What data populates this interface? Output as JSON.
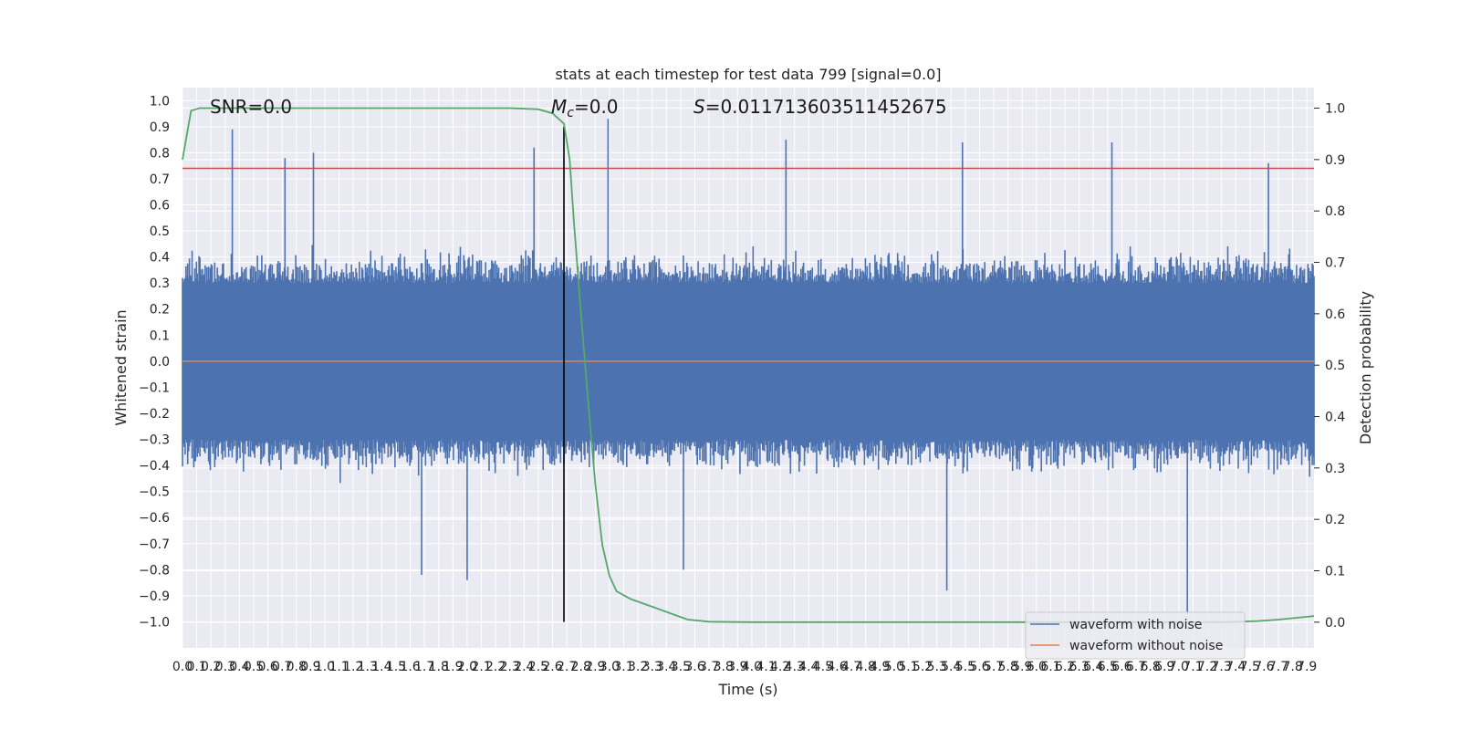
{
  "chart_data": {
    "type": "line",
    "title": "stats at each timestep for test data 799 [signal=0.0]",
    "xlabel": "Time (s)",
    "ylabel": "Whitened strain",
    "y2label": "Detection probability",
    "xlim": [
      0.0,
      7.95
    ],
    "ylim": [
      -1.1,
      1.05
    ],
    "y2lim": [
      -0.05,
      1.04
    ],
    "x_tick_step": 0.1,
    "x_tick_max": 7.9,
    "yticks": [
      "1.0",
      "0.9",
      "0.8",
      "0.7",
      "0.6",
      "0.5",
      "0.4",
      "0.3",
      "0.2",
      "0.1",
      "0.0",
      "-0.1",
      "-0.2",
      "-0.3",
      "-0.4",
      "-0.5",
      "-0.6",
      "-0.7",
      "-0.8",
      "-0.9",
      "-1.0"
    ],
    "y2ticks": [
      "1.0",
      "0.9",
      "0.8",
      "0.7",
      "0.6",
      "0.5",
      "0.4",
      "0.3",
      "0.2",
      "0.1",
      "0.0"
    ],
    "grid": true,
    "legend_position": "bottom-right",
    "annotations": {
      "snr": "SNR=0.0",
      "mc_symbol": "M",
      "mc_sub": "c",
      "mc_value": "=0.0",
      "s_symbol": "S",
      "s_value": "=0.011713603511452675"
    },
    "series": [
      {
        "name": "waveform with noise",
        "color": "#4c72b0",
        "axis": "left",
        "description_of_values": "noise, typical envelope about ±0.45 with spikes",
        "peak_spikes": [
          {
            "x": 0.35,
            "y": 0.89
          },
          {
            "x": 0.72,
            "y": 0.78
          },
          {
            "x": 0.92,
            "y": 0.8
          },
          {
            "x": 2.47,
            "y": 0.82
          },
          {
            "x": 2.99,
            "y": 0.93
          },
          {
            "x": 4.24,
            "y": 0.85
          },
          {
            "x": 5.48,
            "y": 0.84
          },
          {
            "x": 6.53,
            "y": 0.84
          },
          {
            "x": 7.63,
            "y": 0.76
          },
          {
            "x": 1.68,
            "y": -0.82
          },
          {
            "x": 2.0,
            "y": -0.84
          },
          {
            "x": 3.52,
            "y": -0.8
          },
          {
            "x": 5.37,
            "y": -0.88
          },
          {
            "x": 7.06,
            "y": -0.97
          }
        ]
      },
      {
        "name": "waveform without noise",
        "color": "#dd8452",
        "axis": "left",
        "value": 0.0
      },
      {
        "name": "",
        "color": "#55a868",
        "axis": "right",
        "points": [
          [
            0.0,
            0.9
          ],
          [
            0.06,
            0.995
          ],
          [
            0.12,
            1.0
          ],
          [
            0.5,
            1.0
          ],
          [
            1.5,
            1.0
          ],
          [
            2.3,
            1.0
          ],
          [
            2.5,
            0.998
          ],
          [
            2.6,
            0.99
          ],
          [
            2.68,
            0.97
          ],
          [
            2.72,
            0.9
          ],
          [
            2.75,
            0.78
          ],
          [
            2.8,
            0.6
          ],
          [
            2.85,
            0.43
          ],
          [
            2.9,
            0.27
          ],
          [
            2.95,
            0.15
          ],
          [
            3.0,
            0.09
          ],
          [
            3.05,
            0.06
          ],
          [
            3.15,
            0.045
          ],
          [
            3.3,
            0.03
          ],
          [
            3.45,
            0.015
          ],
          [
            3.55,
            0.005
          ],
          [
            3.7,
            0.001
          ],
          [
            4.0,
            0.0
          ],
          [
            5.0,
            0.0
          ],
          [
            6.0,
            0.0
          ],
          [
            7.0,
            0.0
          ],
          [
            7.3,
            0.0
          ],
          [
            7.55,
            0.002
          ],
          [
            7.7,
            0.005
          ],
          [
            7.95,
            0.012
          ]
        ]
      }
    ],
    "reference_lines": [
      {
        "axis": "left",
        "orientation": "horizontal",
        "y": 0.74,
        "color": "#c44e52"
      },
      {
        "axis": "left",
        "orientation": "horizontal",
        "y": 0.0,
        "color": "#dd8452"
      },
      {
        "axis": "x",
        "orientation": "vertical",
        "x": 2.68,
        "y_from": -1.0,
        "y_to": 0.9,
        "color": "#000000"
      }
    ]
  }
}
